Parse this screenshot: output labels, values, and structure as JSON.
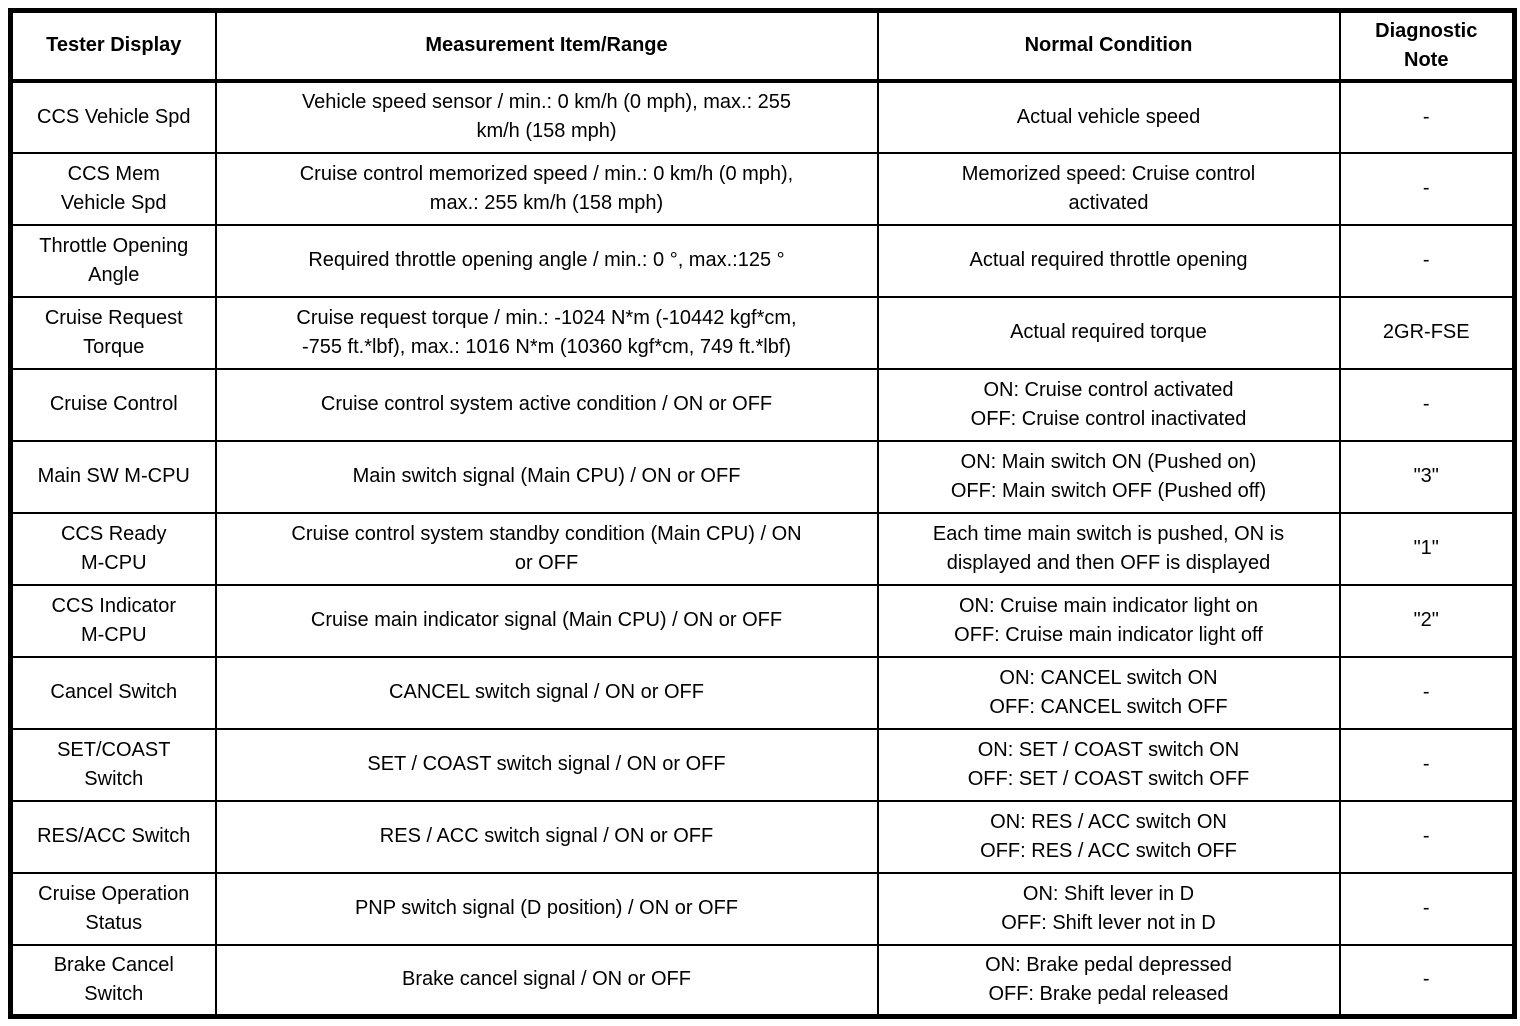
{
  "table": {
    "headers": [
      "Tester Display",
      "Measurement Item/Range",
      "Normal Condition",
      "Diagnostic\nNote"
    ],
    "rows": [
      {
        "tester_display": "CCS Vehicle Spd",
        "measurement": "Vehicle speed sensor / min.: 0 km/h (0 mph), max.: 255\nkm/h (158 mph)",
        "normal_condition": "Actual vehicle speed",
        "diagnostic_note": "-"
      },
      {
        "tester_display": "CCS Mem\nVehicle Spd",
        "measurement": "Cruise control memorized speed / min.: 0 km/h (0 mph),\nmax.: 255 km/h (158 mph)",
        "normal_condition": "Memorized speed: Cruise control\nactivated",
        "diagnostic_note": "-"
      },
      {
        "tester_display": "Throttle Opening\nAngle",
        "measurement": "Required throttle opening angle / min.: 0 °, max.:125 °",
        "normal_condition": "Actual required throttle opening",
        "diagnostic_note": "-"
      },
      {
        "tester_display": "Cruise Request\nTorque",
        "measurement": "Cruise request torque / min.: -1024 N*m (-10442 kgf*cm,\n-755 ft.*lbf), max.: 1016 N*m (10360 kgf*cm, 749 ft.*lbf)",
        "normal_condition": "Actual required torque",
        "diagnostic_note": "2GR-FSE"
      },
      {
        "tester_display": "Cruise Control",
        "measurement": "Cruise control system active condition / ON or OFF",
        "normal_condition": "ON: Cruise control activated\nOFF: Cruise control inactivated",
        "diagnostic_note": "-"
      },
      {
        "tester_display": "Main SW M-CPU",
        "measurement": "Main switch signal (Main CPU) / ON or OFF",
        "normal_condition": "ON: Main switch ON (Pushed on)\nOFF: Main switch OFF (Pushed off)",
        "diagnostic_note": "\"3\""
      },
      {
        "tester_display": "CCS Ready\nM-CPU",
        "measurement": "Cruise control system standby condition (Main CPU) / ON\nor OFF",
        "normal_condition": "Each time main switch is pushed, ON is\ndisplayed and then OFF is displayed",
        "diagnostic_note": "\"1\""
      },
      {
        "tester_display": "CCS Indicator\nM-CPU",
        "measurement": "Cruise main indicator signal (Main CPU) / ON or OFF",
        "normal_condition": "ON: Cruise main indicator light on\nOFF: Cruise main indicator light off",
        "diagnostic_note": "\"2\""
      },
      {
        "tester_display": "Cancel Switch",
        "measurement": "CANCEL switch signal / ON or OFF",
        "normal_condition": "ON: CANCEL switch ON\nOFF: CANCEL switch OFF",
        "diagnostic_note": "-"
      },
      {
        "tester_display": "SET/COAST\nSwitch",
        "measurement": "SET / COAST switch signal / ON or OFF",
        "normal_condition": "ON: SET / COAST switch ON\nOFF: SET / COAST switch OFF",
        "diagnostic_note": "-"
      },
      {
        "tester_display": "RES/ACC Switch",
        "measurement": "RES / ACC switch signal / ON or OFF",
        "normal_condition": "ON: RES / ACC switch ON\nOFF: RES / ACC switch OFF",
        "diagnostic_note": "-"
      },
      {
        "tester_display": "Cruise Operation\nStatus",
        "measurement": "PNP switch signal (D position) / ON or OFF",
        "normal_condition": "ON: Shift lever in D\nOFF: Shift lever not in D",
        "diagnostic_note": "-"
      },
      {
        "tester_display": "Brake Cancel\nSwitch",
        "measurement": "Brake cancel signal / ON or OFF",
        "normal_condition": "ON: Brake pedal depressed\nOFF: Brake pedal released",
        "diagnostic_note": "-"
      }
    ]
  }
}
